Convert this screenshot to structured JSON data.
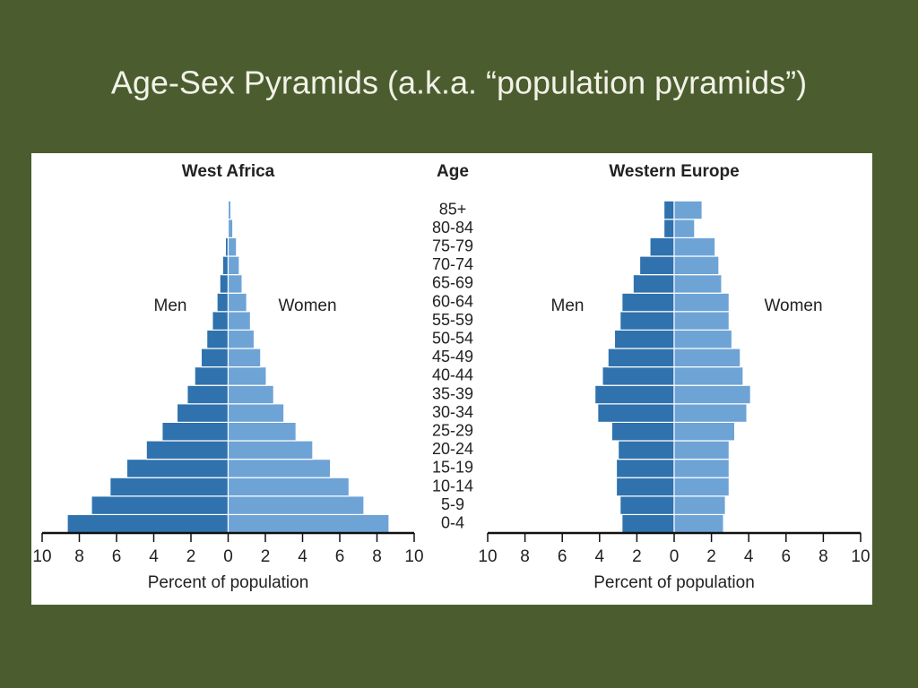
{
  "title": "Age-Sex Pyramids (a.k.a. “population pyramids”)",
  "age_axis": {
    "title": "Age",
    "categories": [
      "0-4",
      "5-9",
      "10-14",
      "15-19",
      "20-24",
      "25-29",
      "30-34",
      "35-39",
      "40-44",
      "45-49",
      "50-54",
      "55-59",
      "60-64",
      "65-69",
      "70-74",
      "75-79",
      "80-84",
      "85+"
    ]
  },
  "chart_data": [
    {
      "type": "pyramid",
      "title": "West Africa",
      "xlabel": "Percent of population",
      "xlim": [
        -10,
        10
      ],
      "xticks": [
        {
          "value": -10,
          "label": "10"
        },
        {
          "value": -8,
          "label": "8"
        },
        {
          "value": -6,
          "label": "6"
        },
        {
          "value": -4,
          "label": "4"
        },
        {
          "value": -2,
          "label": "2"
        },
        0,
        2,
        4,
        6,
        8,
        10
      ],
      "series": [
        {
          "name": "Men",
          "color": "#2f72ad",
          "values": [
            -8.65,
            -7.35,
            -6.35,
            -5.45,
            -4.4,
            -3.55,
            -2.75,
            -2.2,
            -1.8,
            -1.45,
            -1.15,
            -0.85,
            -0.6,
            -0.45,
            -0.3,
            -0.15,
            -0.05,
            -0.05
          ]
        },
        {
          "name": "Women",
          "color": "#6ea3d6",
          "values": [
            8.65,
            7.3,
            6.5,
            5.5,
            4.55,
            3.65,
            3.0,
            2.45,
            2.05,
            1.75,
            1.4,
            1.2,
            1.0,
            0.75,
            0.6,
            0.45,
            0.25,
            0.15
          ]
        }
      ]
    },
    {
      "type": "pyramid",
      "title": "Western Europe",
      "xlabel": "Percent of population",
      "xlim": [
        -10,
        10
      ],
      "xticks": [
        {
          "value": -10,
          "label": "10"
        },
        {
          "value": -8,
          "label": "8"
        },
        {
          "value": -6,
          "label": "6"
        },
        {
          "value": -4,
          "label": "4"
        },
        {
          "value": -2,
          "label": "2"
        },
        0,
        2,
        4,
        6,
        8,
        10
      ],
      "series": [
        {
          "name": "Men",
          "color": "#2f72ad",
          "values": [
            -2.8,
            -2.9,
            -3.1,
            -3.1,
            -3.0,
            -3.35,
            -4.1,
            -4.25,
            -3.85,
            -3.55,
            -3.2,
            -2.9,
            -2.8,
            -2.2,
            -1.85,
            -1.3,
            -0.55,
            -0.55
          ]
        },
        {
          "name": "Women",
          "color": "#6ea3d6",
          "values": [
            2.65,
            2.75,
            2.95,
            2.95,
            2.95,
            3.25,
            3.9,
            4.1,
            3.7,
            3.55,
            3.1,
            2.95,
            2.95,
            2.55,
            2.4,
            2.2,
            1.1,
            1.5
          ]
        }
      ]
    }
  ]
}
